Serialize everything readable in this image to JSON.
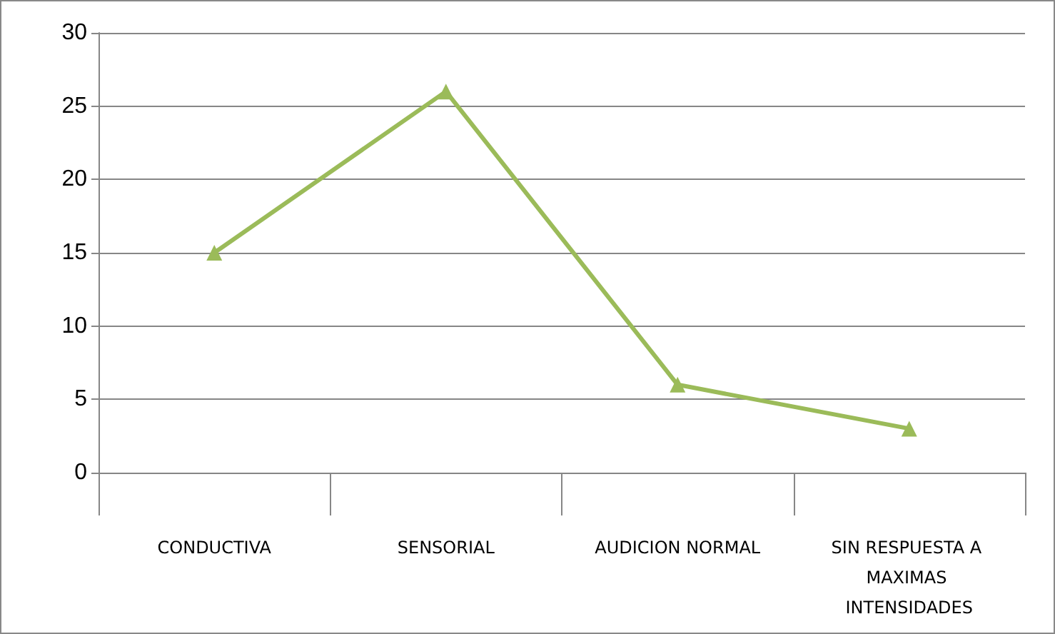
{
  "chart_data": {
    "type": "line",
    "categories": [
      "CONDUCTIVA",
      "SENSORIAL",
      "AUDICION NORMAL",
      "SIN RESPUESTA A MAXIMAS INTENSIDADES"
    ],
    "series": [
      {
        "color": "#9bbb59",
        "values": [
          15,
          26,
          6,
          3
        ]
      }
    ],
    "ylim": [
      0,
      30
    ],
    "yticks": [
      0,
      5,
      10,
      15,
      20,
      25,
      30
    ],
    "grid": "y",
    "marker": "triangle",
    "line_style": "solid"
  }
}
